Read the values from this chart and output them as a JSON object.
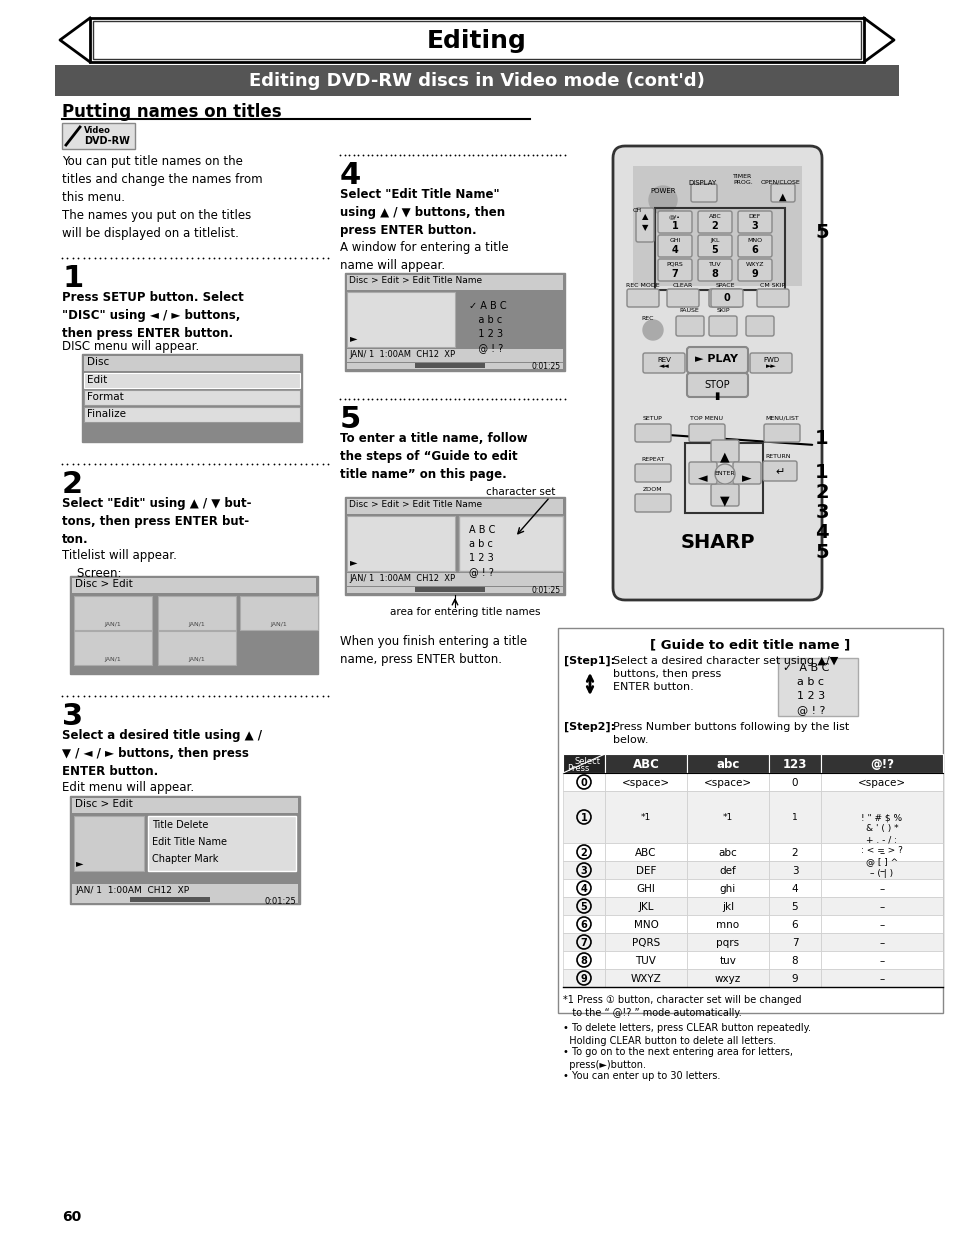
{
  "title": "Editing",
  "subtitle": "Editing DVD-RW discs in Video mode (cont'd)",
  "section_title": "Putting names on titles",
  "bg_color": "#ffffff",
  "page_num": "60",
  "guide_title": "[ Guide to edit title name ]",
  "table_headers": [
    "Select",
    "ABC",
    "abc",
    "123",
    "@!?"
  ],
  "row0": [
    "⓪",
    "<space>",
    "<space>",
    "0",
    "<space>"
  ],
  "row1_col0": "①",
  "row1_abc": "*1",
  "row1_abc_lc": "*1",
  "row1_123": "1",
  "row1_at": "! \" # $ %\n& ' ( ) *\n+ . - / :\n: < = > ?\n@ [ ] ^\n– ( | )",
  "rows_2_9": [
    [
      "②",
      "ABC",
      "abc",
      "2",
      "–"
    ],
    [
      "③",
      "DEF",
      "def",
      "3",
      "–"
    ],
    [
      "④",
      "GHI",
      "ghi",
      "4",
      "–"
    ],
    [
      "⑤",
      "JKL",
      "jkl",
      "5",
      "–"
    ],
    [
      "⑥",
      "MNO",
      "mno",
      "6",
      "–"
    ],
    [
      "⑦",
      "PQRS",
      "pqrs",
      "7",
      "–"
    ],
    [
      "⑧",
      "TUV",
      "tuv",
      "8",
      "–"
    ],
    [
      "⑨",
      "WXYZ",
      "wxyz",
      "9",
      "–"
    ]
  ],
  "footnote1": "*1 Press ① button, character set will be changed\n   to the “ @!? ” mode automatically.",
  "footnotes": [
    "• To delete letters, press CLEAR button repeatedly.\n  Holding CLEAR button to delete all letters.",
    "• To go on to the next entering area for letters,\n  press(►)button.",
    "• You can enter up to 30 letters."
  ]
}
